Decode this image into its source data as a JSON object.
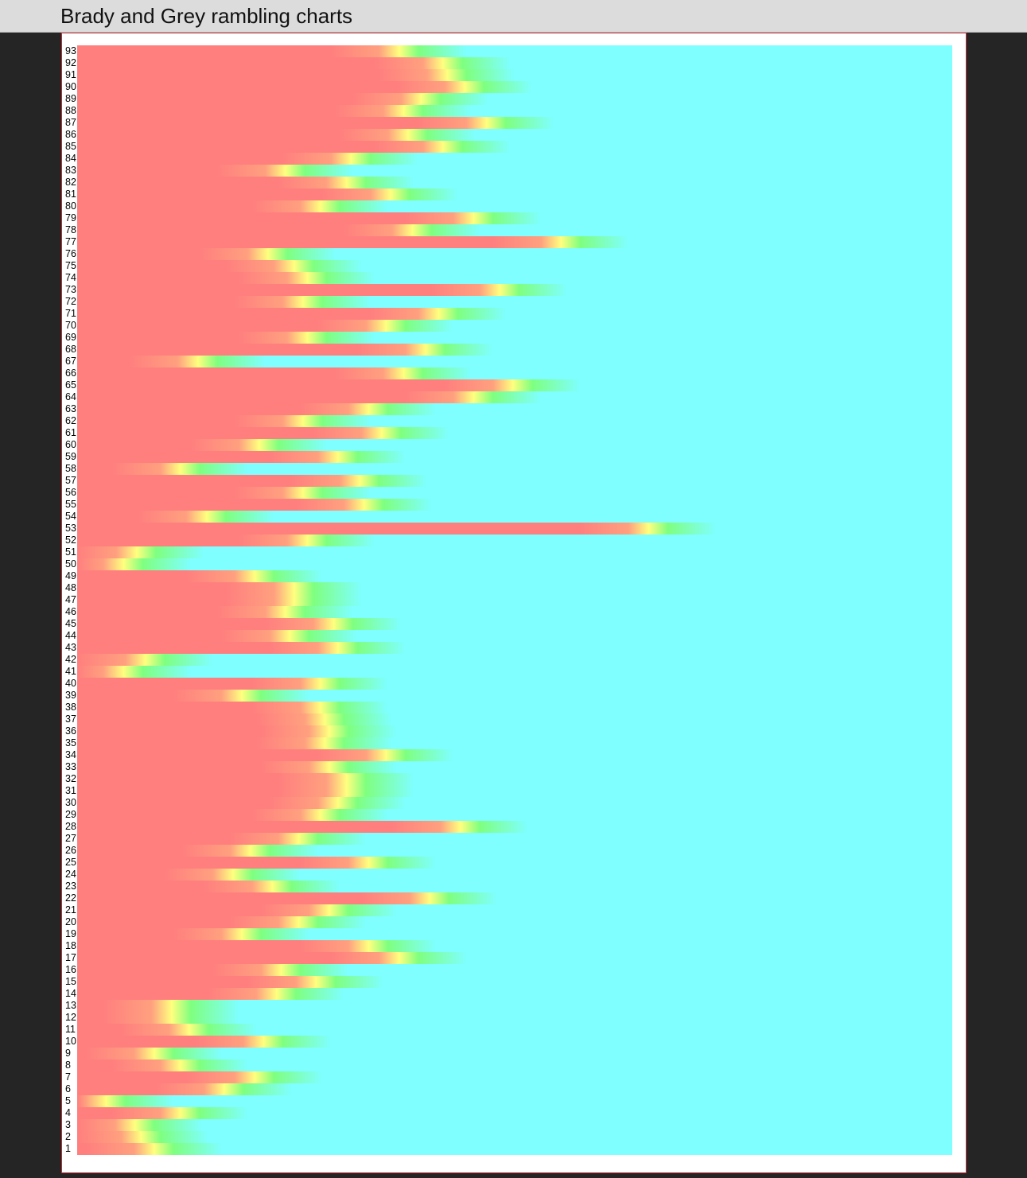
{
  "page": {
    "title": "Brady and Grey rambling charts"
  },
  "colors": {
    "background": "#252525",
    "topbar": "#dcdcdc",
    "panel": "#ffffff",
    "panel_border": "#c0303a",
    "gradient_stops": [
      "#ff7f7f",
      "#ffa07f",
      "#ffff7f",
      "#7fff7f",
      "#7fffff"
    ]
  },
  "chart_data": {
    "type": "heatmap",
    "title": "",
    "xlabel": "",
    "ylabel": "",
    "rows": [
      {
        "label": "1",
        "transition": 0.11
      },
      {
        "label": "2",
        "transition": 0.095
      },
      {
        "label": "3",
        "transition": 0.088
      },
      {
        "label": "4",
        "transition": 0.14
      },
      {
        "label": "5",
        "transition": 0.055
      },
      {
        "label": "6",
        "transition": 0.19
      },
      {
        "label": "7",
        "transition": 0.225
      },
      {
        "label": "8",
        "transition": 0.14
      },
      {
        "label": "9",
        "transition": 0.11
      },
      {
        "label": "10",
        "transition": 0.235
      },
      {
        "label": "11",
        "transition": 0.15
      },
      {
        "label": "12",
        "transition": 0.13
      },
      {
        "label": "13",
        "transition": 0.13
      },
      {
        "label": "14",
        "transition": 0.25
      },
      {
        "label": "15",
        "transition": 0.295
      },
      {
        "label": "16",
        "transition": 0.255
      },
      {
        "label": "17",
        "transition": 0.39
      },
      {
        "label": "18",
        "transition": 0.355
      },
      {
        "label": "19",
        "transition": 0.21
      },
      {
        "label": "20",
        "transition": 0.275
      },
      {
        "label": "21",
        "transition": 0.31
      },
      {
        "label": "22",
        "transition": 0.425
      },
      {
        "label": "23",
        "transition": 0.245
      },
      {
        "label": "24",
        "transition": 0.2
      },
      {
        "label": "25",
        "transition": 0.355
      },
      {
        "label": "26",
        "transition": 0.22
      },
      {
        "label": "27",
        "transition": 0.275
      },
      {
        "label": "28",
        "transition": 0.46
      },
      {
        "label": "29",
        "transition": 0.3
      },
      {
        "label": "30",
        "transition": 0.32
      },
      {
        "label": "31",
        "transition": 0.33
      },
      {
        "label": "32",
        "transition": 0.33
      },
      {
        "label": "33",
        "transition": 0.31
      },
      {
        "label": "34",
        "transition": 0.375
      },
      {
        "label": "35",
        "transition": 0.305
      },
      {
        "label": "36",
        "transition": 0.31
      },
      {
        "label": "37",
        "transition": 0.305
      },
      {
        "label": "38",
        "transition": 0.3
      },
      {
        "label": "39",
        "transition": 0.21
      },
      {
        "label": "40",
        "transition": 0.3
      },
      {
        "label": "41",
        "transition": 0.075
      },
      {
        "label": "42",
        "transition": 0.1
      },
      {
        "label": "43",
        "transition": 0.32
      },
      {
        "label": "44",
        "transition": 0.265
      },
      {
        "label": "45",
        "transition": 0.315
      },
      {
        "label": "46",
        "transition": 0.26
      },
      {
        "label": "47",
        "transition": 0.27
      },
      {
        "label": "48",
        "transition": 0.27
      },
      {
        "label": "49",
        "transition": 0.225
      },
      {
        "label": "50",
        "transition": 0.075
      },
      {
        "label": "51",
        "transition": 0.09
      },
      {
        "label": "52",
        "transition": 0.285
      },
      {
        "label": "53",
        "transition": 0.675
      },
      {
        "label": "54",
        "transition": 0.17
      },
      {
        "label": "55",
        "transition": 0.35
      },
      {
        "label": "56",
        "transition": 0.28
      },
      {
        "label": "57",
        "transition": 0.345
      },
      {
        "label": "58",
        "transition": 0.14
      },
      {
        "label": "59",
        "transition": 0.32
      },
      {
        "label": "60",
        "transition": 0.23
      },
      {
        "label": "61",
        "transition": 0.37
      },
      {
        "label": "62",
        "transition": 0.28
      },
      {
        "label": "63",
        "transition": 0.355
      },
      {
        "label": "64",
        "transition": 0.475
      },
      {
        "label": "65",
        "transition": 0.52
      },
      {
        "label": "66",
        "transition": 0.395
      },
      {
        "label": "67",
        "transition": 0.16
      },
      {
        "label": "68",
        "transition": 0.42
      },
      {
        "label": "69",
        "transition": 0.285
      },
      {
        "label": "70",
        "transition": 0.375
      },
      {
        "label": "71",
        "transition": 0.435
      },
      {
        "label": "72",
        "transition": 0.28
      },
      {
        "label": "73",
        "transition": 0.505
      },
      {
        "label": "74",
        "transition": 0.285
      },
      {
        "label": "75",
        "transition": 0.27
      },
      {
        "label": "76",
        "transition": 0.24
      },
      {
        "label": "77",
        "transition": 0.575
      },
      {
        "label": "78",
        "transition": 0.405
      },
      {
        "label": "79",
        "transition": 0.475
      },
      {
        "label": "80",
        "transition": 0.3
      },
      {
        "label": "81",
        "transition": 0.38
      },
      {
        "label": "82",
        "transition": 0.33
      },
      {
        "label": "83",
        "transition": 0.26
      },
      {
        "label": "84",
        "transition": 0.335
      },
      {
        "label": "85",
        "transition": 0.44
      },
      {
        "label": "86",
        "transition": 0.4
      },
      {
        "label": "87",
        "transition": 0.49
      },
      {
        "label": "88",
        "transition": 0.395
      },
      {
        "label": "89",
        "transition": 0.415
      },
      {
        "label": "90",
        "transition": 0.465
      },
      {
        "label": "91",
        "transition": 0.445
      },
      {
        "label": "92",
        "transition": 0.44
      },
      {
        "label": "93",
        "transition": 0.39
      }
    ]
  }
}
